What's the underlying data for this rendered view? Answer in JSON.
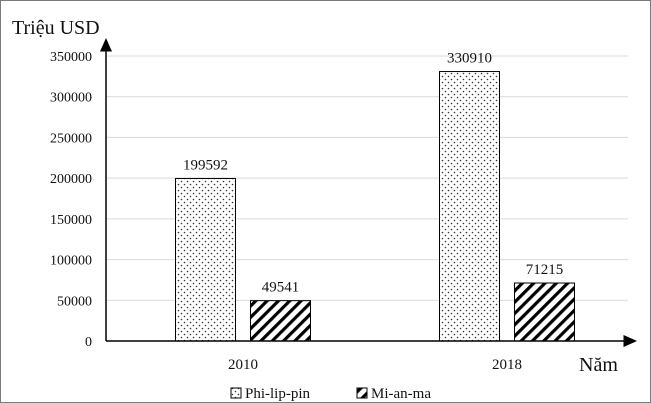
{
  "chart_data": {
    "type": "bar",
    "ylabel": "Triệu USD",
    "xlabel": "Năm",
    "categories": [
      "2010",
      "2018"
    ],
    "series": [
      {
        "name": "Phi-lip-pin",
        "values": [
          199592,
          330910
        ],
        "pattern": "dots"
      },
      {
        "name": "Mi-an-ma",
        "values": [
          49541,
          71215
        ],
        "pattern": "diagonal-hatch"
      }
    ],
    "data_labels": [
      [
        "199592",
        "330910"
      ],
      [
        "49541",
        "71215"
      ]
    ],
    "yticks": [
      0,
      50000,
      100000,
      150000,
      200000,
      250000,
      300000,
      350000
    ],
    "ylim": [
      0,
      350000
    ],
    "grid": true,
    "legend": "bottom-center",
    "colors": {
      "bar_stroke": "#000000",
      "grid": "#d9d9d9",
      "axis": "#000000"
    }
  }
}
